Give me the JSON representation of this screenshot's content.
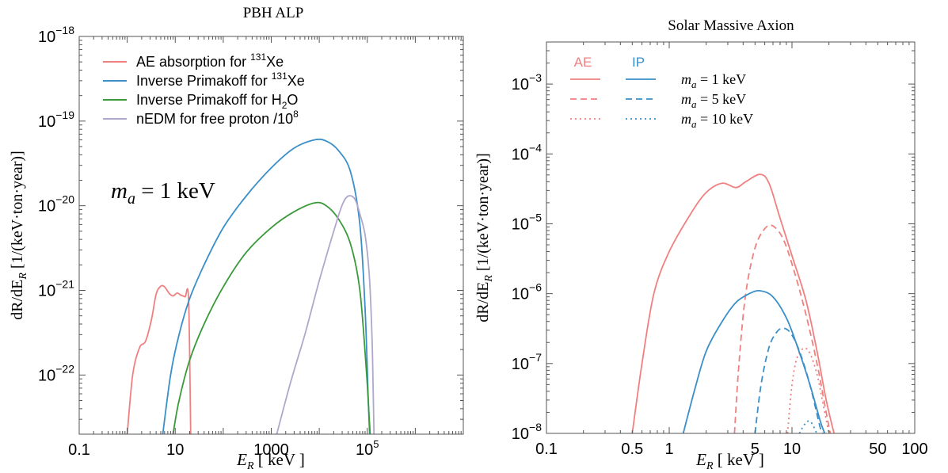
{
  "chart_data": [
    {
      "type": "line",
      "title": "PBH ALP",
      "xlabel": "E_R [ keV ]",
      "ylabel": "dR/dE_R [1/(keV·ton·year)]",
      "xscale": "log",
      "yscale": "log",
      "xlim": [
        0.1,
        10000000
      ],
      "ylim": [
        2e-23,
        1e-18
      ],
      "xticks": [
        {
          "value": 0.1,
          "label": "0.1"
        },
        {
          "value": 10,
          "label": "10"
        },
        {
          "value": 1000,
          "label": "1000"
        },
        {
          "value": 100000,
          "label": "10",
          "sup": "5"
        }
      ],
      "yticks": [
        {
          "value": 1e-22,
          "label": "10",
          "sup": "−22"
        },
        {
          "value": 1e-21,
          "label": "10",
          "sup": "−21"
        },
        {
          "value": 1e-20,
          "label": "10",
          "sup": "−20"
        },
        {
          "value": 1e-19,
          "label": "10",
          "sup": "−19"
        },
        {
          "value": 1e-18,
          "label": "10",
          "sup": "−18"
        }
      ],
      "annotation": {
        "var": "m",
        "sub": "a",
        "text": " = 1 keV"
      },
      "legend_position": "top-left",
      "series": [
        {
          "name": "AE absorption for ¹³¹Xe",
          "legend": {
            "pre": "AE absorption for ",
            "sup": "131",
            "post": "Xe"
          },
          "color": "#f08080",
          "points": [
            [
              1,
              2e-23
            ],
            [
              1.3,
              1e-22
            ],
            [
              1.8,
              2.1e-22
            ],
            [
              2.4,
              2.5e-22
            ],
            [
              3.2,
              4.5e-22
            ],
            [
              4,
              9e-22
            ],
            [
              5,
              1.12e-21
            ],
            [
              6,
              1.1e-21
            ],
            [
              7.5,
              9.2e-22
            ],
            [
              9,
              8.6e-22
            ],
            [
              11,
              9.3e-22
            ],
            [
              13,
              8.8e-22
            ],
            [
              16,
              8.4e-22
            ],
            [
              19,
              7.8e-22
            ],
            [
              21,
              2e-23
            ]
          ]
        },
        {
          "name": "Inverse Primakoff for ¹³¹Xe",
          "legend": {
            "pre": "Inverse Primakoff for ",
            "sup": "131",
            "post": "Xe"
          },
          "color": "#3a8fc8",
          "points": [
            [
              5.5,
              2e-23
            ],
            [
              8,
              1e-22
            ],
            [
              12,
              3e-22
            ],
            [
              20,
              8e-22
            ],
            [
              40,
              2e-21
            ],
            [
              100,
              5.5e-21
            ],
            [
              300,
              1.3e-20
            ],
            [
              1000,
              2.8e-20
            ],
            [
              3000,
              4.8e-20
            ],
            [
              8000,
              6e-20
            ],
            [
              14000,
              5.8e-20
            ],
            [
              25000,
              4.5e-20
            ],
            [
              45000,
              2.5e-20
            ],
            [
              70000,
              6e-21
            ],
            [
              90000,
              6e-22
            ],
            [
              105000,
              5e-23
            ],
            [
              112000,
              2e-23
            ]
          ]
        },
        {
          "name": "Inverse Primakoff for H₂O",
          "legend": {
            "pre": "Inverse Primakoff for H",
            "sub": "2",
            "post": "O"
          },
          "color": "#3a9a3a",
          "points": [
            [
              9,
              2e-23
            ],
            [
              12,
              5e-23
            ],
            [
              20,
              1.5e-22
            ],
            [
              40,
              4e-22
            ],
            [
              100,
              1.1e-21
            ],
            [
              300,
              2.8e-21
            ],
            [
              1000,
              5.5e-21
            ],
            [
              3000,
              8.5e-21
            ],
            [
              8000,
              1.08e-20
            ],
            [
              14000,
              1e-20
            ],
            [
              25000,
              7e-21
            ],
            [
              45000,
              3.5e-21
            ],
            [
              70000,
              1e-21
            ],
            [
              95000,
              1.2e-22
            ],
            [
              110000,
              3e-23
            ],
            [
              115000,
              2e-23
            ]
          ]
        },
        {
          "name": "nEDM for free proton /10⁸",
          "legend": {
            "pre": "nEDM for free proton /10",
            "sup": "8",
            "post": ""
          },
          "color": "#b0a8cc",
          "points": [
            [
              1300,
              2e-23
            ],
            [
              2500,
              8e-23
            ],
            [
              5000,
              3e-22
            ],
            [
              10000,
              1.3e-21
            ],
            [
              20000,
              5e-21
            ],
            [
              30000,
              1.02e-20
            ],
            [
              40000,
              1.3e-20
            ],
            [
              55000,
              1.2e-20
            ],
            [
              70000,
              8e-21
            ],
            [
              90000,
              4.5e-21
            ],
            [
              110000,
              1.5e-21
            ],
            [
              125000,
              3e-22
            ],
            [
              133000,
              6e-23
            ],
            [
              138000,
              2e-23
            ]
          ]
        }
      ]
    },
    {
      "type": "line",
      "title": "Solar Massive Axion",
      "xlabel": "E_R [ keV ]",
      "ylabel": "dR/dE_R [1/(keV·ton·year)]",
      "xscale": "log",
      "yscale": "log",
      "xlim": [
        0.1,
        100
      ],
      "ylim": [
        1e-08,
        0.004
      ],
      "xticks": [
        {
          "value": 0.1,
          "label": "0.1"
        },
        {
          "value": 0.5,
          "label": "0.5"
        },
        {
          "value": 1,
          "label": "1"
        },
        {
          "value": 5,
          "label": "5"
        },
        {
          "value": 10,
          "label": "10"
        },
        {
          "value": 50,
          "label": "50"
        },
        {
          "value": 100,
          "label": "100"
        }
      ],
      "yticks": [
        {
          "value": 1e-08,
          "label": "10",
          "sup": "−8"
        },
        {
          "value": 1e-07,
          "label": "10",
          "sup": "−7"
        },
        {
          "value": 1e-06,
          "label": "10",
          "sup": "−6"
        },
        {
          "value": 1e-05,
          "label": "10",
          "sup": "−5"
        },
        {
          "value": 0.0001,
          "label": "10",
          "sup": "−4"
        },
        {
          "value": 0.001,
          "label": "10",
          "sup": "−3"
        }
      ],
      "legend_position": "top-left",
      "legend": {
        "headers": [
          "AE",
          "IP"
        ],
        "header_colors": [
          "#f08080",
          "#3a8fc8"
        ],
        "rows": [
          {
            "var": "m",
            "sub": "a",
            "text": " = 1 keV",
            "dash": "solid"
          },
          {
            "var": "m",
            "sub": "a",
            "text": " = 5 keV",
            "dash": "dashed"
          },
          {
            "var": "m",
            "sub": "a",
            "text": " = 10 keV",
            "dash": "dotted"
          }
        ]
      },
      "series": [
        {
          "group": "AE",
          "mass_keV": 1,
          "color": "#f08080",
          "dash": "solid",
          "points": [
            [
              0.5,
              1e-08
            ],
            [
              0.6,
              1e-07
            ],
            [
              0.75,
              1e-06
            ],
            [
              1,
              4e-06
            ],
            [
              1.5,
              1.4e-05
            ],
            [
              2,
              2.8e-05
            ],
            [
              2.7,
              3.8e-05
            ],
            [
              3.5,
              3.3e-05
            ],
            [
              4.2,
              4e-05
            ],
            [
              5.5,
              5.1e-05
            ],
            [
              6.5,
              3.8e-05
            ],
            [
              8,
              1.2e-05
            ],
            [
              10,
              3.5e-06
            ],
            [
              13,
              8e-07
            ],
            [
              16,
              1.5e-07
            ],
            [
              19,
              3e-08
            ],
            [
              22,
              1e-08
            ]
          ]
        },
        {
          "group": "AE",
          "mass_keV": 5,
          "color": "#f08080",
          "dash": "dashed",
          "points": [
            [
              3.4,
              1e-08
            ],
            [
              3.7,
              1e-07
            ],
            [
              4.2,
              1e-06
            ],
            [
              5,
              4.5e-06
            ],
            [
              6,
              8.5e-06
            ],
            [
              7,
              9.3e-06
            ],
            [
              8.5,
              6e-06
            ],
            [
              10.5,
              2e-06
            ],
            [
              13,
              5e-07
            ],
            [
              16,
              1e-07
            ],
            [
              19,
              2e-08
            ],
            [
              20.5,
              1e-08
            ]
          ]
        },
        {
          "group": "AE",
          "mass_keV": 10,
          "color": "#f08080",
          "dash": "dotted",
          "points": [
            [
              9.2,
              1e-08
            ],
            [
              10,
              5e-08
            ],
            [
              11,
              1.2e-07
            ],
            [
              12.5,
              1.65e-07
            ],
            [
              14,
              1.4e-07
            ],
            [
              16,
              7e-08
            ],
            [
              18,
              2.5e-08
            ],
            [
              20,
              1e-08
            ]
          ]
        },
        {
          "group": "IP",
          "mass_keV": 1,
          "color": "#3a8fc8",
          "dash": "solid",
          "points": [
            [
              1.3,
              1e-08
            ],
            [
              1.6,
              4e-08
            ],
            [
              2,
              1.5e-07
            ],
            [
              2.7,
              4e-07
            ],
            [
              3.5,
              7.5e-07
            ],
            [
              4.5,
              1e-06
            ],
            [
              5.5,
              1.1e-06
            ],
            [
              7,
              9e-07
            ],
            [
              9,
              4.5e-07
            ],
            [
              11,
              1.8e-07
            ],
            [
              14,
              5e-08
            ],
            [
              17,
              1.5e-08
            ],
            [
              18.5,
              1e-08
            ]
          ]
        },
        {
          "group": "IP",
          "mass_keV": 5,
          "color": "#3a8fc8",
          "dash": "dashed",
          "points": [
            [
              5,
              1e-08
            ],
            [
              5.6,
              5e-08
            ],
            [
              6.5,
              1.7e-07
            ],
            [
              7.5,
              2.8e-07
            ],
            [
              8.5,
              3.2e-07
            ],
            [
              9.8,
              2.7e-07
            ],
            [
              11.5,
              1.5e-07
            ],
            [
              14,
              5e-08
            ],
            [
              17,
              1.2e-08
            ],
            [
              18,
              1e-08
            ]
          ]
        },
        {
          "group": "IP",
          "mass_keV": 10,
          "color": "#3a8fc8",
          "dash": "dotted",
          "points": [
            [
              11.5,
              1e-08
            ],
            [
              12.5,
              1.3e-08
            ],
            [
              13.5,
              1.5e-08
            ],
            [
              14.5,
              1.4e-08
            ],
            [
              15.5,
              1.1e-08
            ],
            [
              16,
              1e-08
            ]
          ]
        }
      ]
    }
  ]
}
